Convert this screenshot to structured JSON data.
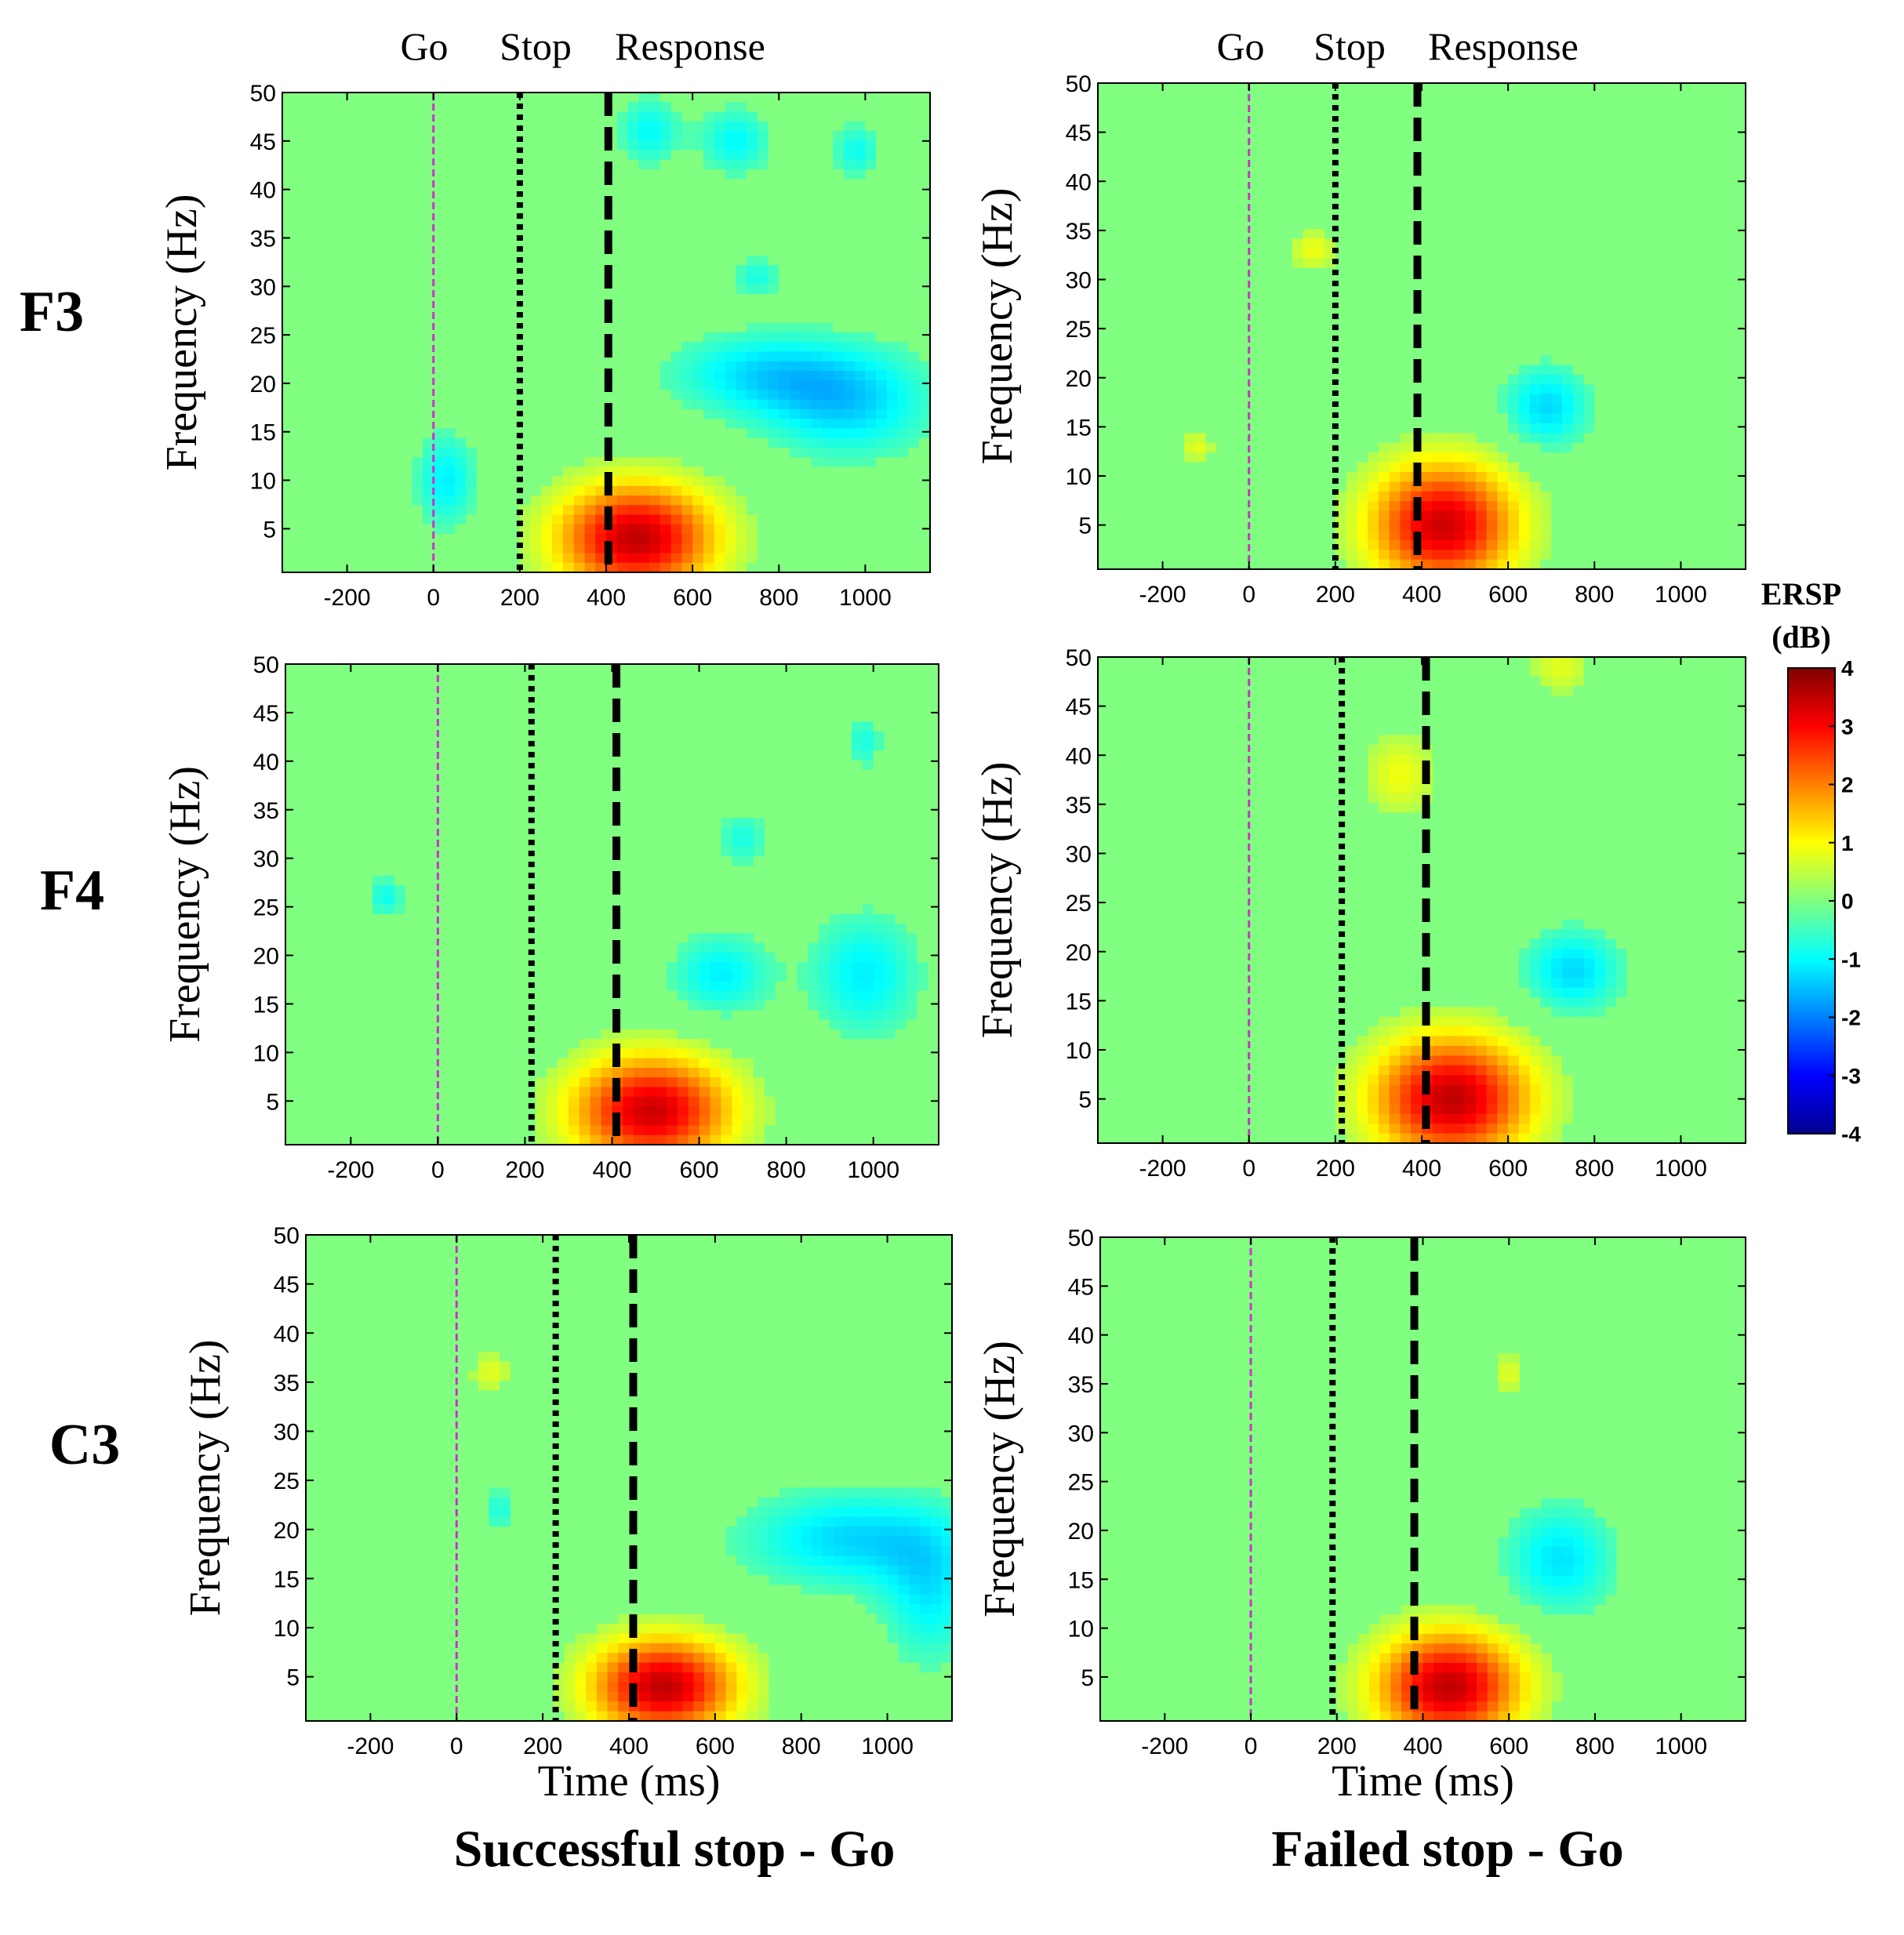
{
  "chart_data": {
    "type": "heatmap",
    "figure_kind": "time-frequency ERSP maps",
    "columns": [
      {
        "id": "success",
        "label": "Successful stop - Go",
        "events": {
          "go": 0,
          "stop": 200,
          "response": 400
        }
      },
      {
        "id": "failed",
        "label": "Failed stop - Go",
        "events": {
          "go": 0,
          "stop": 200,
          "response": 390
        }
      }
    ],
    "rows": [
      "F3",
      "F4",
      "C3"
    ],
    "event_labels": [
      "Go",
      "Stop",
      "Response"
    ],
    "xlabel": "Time (ms)",
    "ylabel": "Frequency (Hz)",
    "xlim": [
      -350,
      1150
    ],
    "ylim": [
      0.5,
      50
    ],
    "xticks": [
      -200,
      0,
      200,
      400,
      600,
      800,
      1000
    ],
    "yticks": [
      5,
      10,
      15,
      20,
      25,
      30,
      35,
      40,
      45,
      50
    ],
    "xtick_labels": [
      "-200",
      "0",
      "200",
      "400",
      "600",
      "800",
      "1000"
    ],
    "ytick_labels": [
      "5",
      "10",
      "15",
      "20",
      "25",
      "30",
      "35",
      "40",
      "45",
      "50"
    ],
    "colorbar": {
      "title": [
        "ERSP",
        "(dB)"
      ],
      "range": [
        -4,
        4
      ],
      "ticks": [
        4,
        3,
        2,
        1,
        0,
        -1,
        -2,
        -3,
        -4
      ],
      "tick_labels": [
        "4",
        "3",
        "2",
        "1",
        "0",
        "-1",
        "-2",
        "-3",
        "-4"
      ],
      "colormap": "jet"
    },
    "panels": [
      {
        "row": "F3",
        "col": "success",
        "events": {
          "go": 0,
          "stop": 200,
          "response": 405
        },
        "blobs": [
          {
            "t": 470,
            "f": 4,
            "st": 130,
            "sf": 4,
            "a": 3.5
          },
          {
            "t": 30,
            "f": 10,
            "st": 50,
            "sf": 3.5,
            "a": -1.1
          },
          {
            "t": 500,
            "f": 46,
            "st": 50,
            "sf": 2.5,
            "a": -1.0
          },
          {
            "t": 700,
            "f": 45,
            "st": 60,
            "sf": 2.5,
            "a": -1.0
          },
          {
            "t": 750,
            "f": 21,
            "st": 150,
            "sf": 3,
            "a": -1.1
          },
          {
            "t": 960,
            "f": 18,
            "st": 140,
            "sf": 4,
            "a": -1.3
          },
          {
            "t": 980,
            "f": 44,
            "st": 40,
            "sf": 2,
            "a": -0.9
          },
          {
            "t": 750,
            "f": 31,
            "st": 40,
            "sf": 1.5,
            "a": -0.8
          }
        ]
      },
      {
        "row": "F3",
        "col": "failed",
        "events": {
          "go": 0,
          "stop": 200,
          "response": 390
        },
        "blobs": [
          {
            "t": 450,
            "f": 5,
            "st": 120,
            "sf": 4.5,
            "a": 3.4
          },
          {
            "t": 690,
            "f": 17,
            "st": 70,
            "sf": 3,
            "a": -1.3
          },
          {
            "t": 150,
            "f": 33,
            "st": 40,
            "sf": 1.5,
            "a": 0.9
          },
          {
            "t": -120,
            "f": 13,
            "st": 30,
            "sf": 1.2,
            "a": 0.8
          }
        ]
      },
      {
        "row": "F4",
        "col": "success",
        "events": {
          "go": 0,
          "stop": 215,
          "response": 410
        },
        "blobs": [
          {
            "t": 490,
            "f": 4,
            "st": 130,
            "sf": 4,
            "a": 3.4
          },
          {
            "t": 650,
            "f": 18,
            "st": 80,
            "sf": 3,
            "a": -1.1
          },
          {
            "t": 980,
            "f": 18,
            "st": 90,
            "sf": 4.5,
            "a": -1.1
          },
          {
            "t": 700,
            "f": 32,
            "st": 40,
            "sf": 2,
            "a": -0.8
          },
          {
            "t": -120,
            "f": 26,
            "st": 30,
            "sf": 1.5,
            "a": -0.9
          },
          {
            "t": 980,
            "f": 42,
            "st": 30,
            "sf": 2,
            "a": -0.8
          }
        ]
      },
      {
        "row": "F4",
        "col": "failed",
        "events": {
          "go": 0,
          "stop": 215,
          "response": 410
        },
        "blobs": [
          {
            "t": 470,
            "f": 5,
            "st": 130,
            "sf": 4.5,
            "a": 3.5
          },
          {
            "t": 750,
            "f": 18,
            "st": 80,
            "sf": 3,
            "a": -1.3
          },
          {
            "t": 350,
            "f": 38,
            "st": 60,
            "sf": 3,
            "a": 0.9
          },
          {
            "t": 720,
            "f": 49,
            "st": 50,
            "sf": 2,
            "a": 0.8
          }
        ]
      },
      {
        "row": "C3",
        "col": "success",
        "events": {
          "go": 0,
          "stop": 230,
          "response": 410
        },
        "blobs": [
          {
            "t": 480,
            "f": 4,
            "st": 120,
            "sf": 3.5,
            "a": 3.5
          },
          {
            "t": 920,
            "f": 19,
            "st": 180,
            "sf": 3.5,
            "a": -1.3
          },
          {
            "t": 1100,
            "f": 13,
            "st": 80,
            "sf": 5,
            "a": -1.0
          },
          {
            "t": 80,
            "f": 36,
            "st": 35,
            "sf": 1.5,
            "a": 0.8
          },
          {
            "t": 100,
            "f": 22,
            "st": 25,
            "sf": 1.5,
            "a": -0.8
          }
        ]
      },
      {
        "row": "C3",
        "col": "failed",
        "events": {
          "go": 0,
          "stop": 190,
          "response": 380
        },
        "blobs": [
          {
            "t": 460,
            "f": 4,
            "st": 120,
            "sf": 4,
            "a": 3.5
          },
          {
            "t": 720,
            "f": 17,
            "st": 90,
            "sf": 4,
            "a": -1.2
          },
          {
            "t": 600,
            "f": 36,
            "st": 25,
            "sf": 1.5,
            "a": 0.8
          }
        ]
      }
    ]
  }
}
